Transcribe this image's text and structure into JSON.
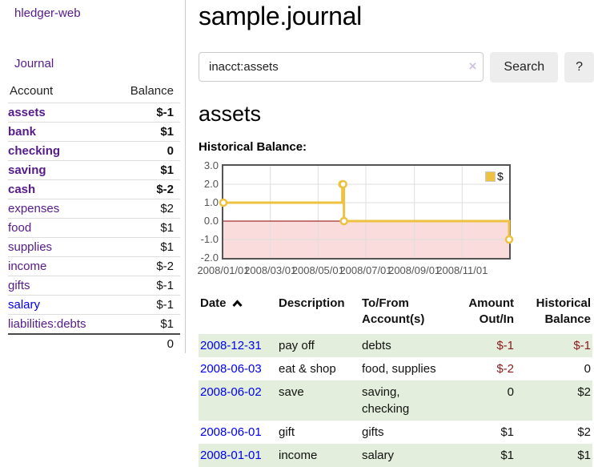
{
  "app": {
    "brand": "hledger-web"
  },
  "sidebar": {
    "journal_label": "Journal",
    "table": {
      "header_account": "Account",
      "header_balance": "Balance",
      "rows": [
        {
          "account": "assets",
          "balance": "$-1"
        },
        {
          "account": "bank",
          "balance": "$1"
        },
        {
          "account": "checking",
          "balance": "0"
        },
        {
          "account": "saving",
          "balance": "$1"
        },
        {
          "account": "cash",
          "balance": "$-2"
        },
        {
          "account": "expenses",
          "balance": "$2"
        },
        {
          "account": "food",
          "balance": "$1"
        },
        {
          "account": "supplies",
          "balance": "$1"
        },
        {
          "account": "income",
          "balance": "$-2"
        },
        {
          "account": "gifts",
          "balance": "$-1"
        },
        {
          "account": "salary",
          "balance": "$-1"
        },
        {
          "account": "liabilities:debts",
          "balance": "$1"
        }
      ],
      "total": "0"
    }
  },
  "main": {
    "title": "sample.journal",
    "search": {
      "value": "inacct:assets",
      "clear_icon": "×",
      "button_label": "Search",
      "help_label": "?"
    },
    "account_heading": "assets"
  },
  "chart_data": {
    "type": "line",
    "title": "Historical Balance:",
    "step": true,
    "series": [
      {
        "name": "$",
        "color": "#edc240",
        "points": [
          [
            "2008-01-01",
            1
          ],
          [
            "2008-06-01",
            2
          ],
          [
            "2008-06-02",
            2
          ],
          [
            "2008-06-03",
            0
          ],
          [
            "2008-12-31",
            -1
          ]
        ]
      }
    ],
    "xlim": [
      "2008-01-01",
      "2008-12-31"
    ],
    "ylim": [
      -2,
      3
    ],
    "x_ticks": [
      "2008/01/01",
      "2008/03/01",
      "2008/05/01",
      "2008/07/01",
      "2008/09/01",
      "2008/11/01"
    ],
    "y_ticks": [
      3.0,
      2.0,
      1.0,
      0.0,
      -1.0,
      -2.0
    ],
    "grid": true,
    "legend": {
      "label": "$",
      "position": "top-right"
    },
    "negative_region_color": "#fbdcdc",
    "zero_line_color": "#8b0000",
    "gridline_color": "#dedede"
  },
  "register": {
    "headers": {
      "date": "Date",
      "description": "Description",
      "account": "To/From Account(s)",
      "amount": "Amount Out/In",
      "balance": "Historical Balance"
    },
    "rows": [
      {
        "date": "2008-12-31",
        "description": "pay off",
        "accounts": "debts",
        "amount": "$-1",
        "balance": "$-1"
      },
      {
        "date": "2008-06-03",
        "description": "eat & shop",
        "accounts": "food, supplies",
        "amount": "$-2",
        "balance": "0"
      },
      {
        "date": "2008-06-02",
        "description": "save",
        "accounts": "saving, checking",
        "amount": "0",
        "balance": "$2"
      },
      {
        "date": "2008-06-01",
        "description": "gift",
        "accounts": "gifts",
        "amount": "$1",
        "balance": "$2"
      },
      {
        "date": "2008-01-01",
        "description": "income",
        "accounts": "salary",
        "amount": "$1",
        "balance": "$1"
      }
    ]
  },
  "colors": {
    "link_purple": "#551a8b",
    "link_blue": "#0000ee",
    "negative_strong": "#8b1a1a",
    "negative_muted": "#b36b6b",
    "row_stripe_green": "#e3efdc",
    "series_gold": "#edc240"
  }
}
